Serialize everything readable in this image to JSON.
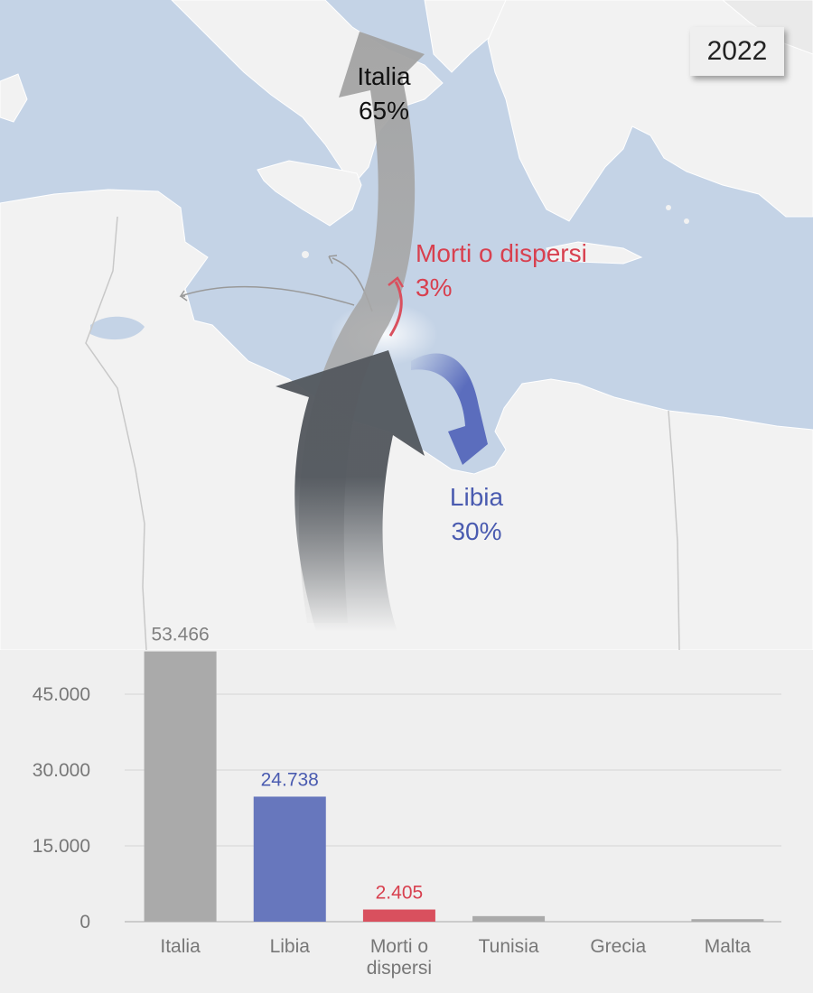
{
  "year": "2022",
  "flows": {
    "italia": {
      "name": "Italia",
      "pct": "65%"
    },
    "morti": {
      "name": "Morti o dispersi",
      "pct": "3%"
    },
    "libia": {
      "name": "Libia",
      "pct": "30%"
    }
  },
  "colors": {
    "sea": "#c4d3e6",
    "land": "#f2f2f2",
    "italia": "#aaaaaa",
    "libia": "#6777bd",
    "morti": "#d9505e",
    "other": "#aaaaaa"
  },
  "chart_data": {
    "type": "bar",
    "categories": [
      "Italia",
      "Libia",
      "Morti o dispersi",
      "Tunisia",
      "Grecia",
      "Malta"
    ],
    "category_lines": [
      [
        "Italia"
      ],
      [
        "Libia"
      ],
      [
        "Morti o",
        "dispersi"
      ],
      [
        "Tunisia"
      ],
      [
        "Grecia"
      ],
      [
        "Malta"
      ]
    ],
    "values": [
      53466,
      24738,
      2405,
      1100,
      0,
      500
    ],
    "value_labels": [
      "53.466",
      "24.738",
      "2.405",
      "",
      "",
      ""
    ],
    "bar_colors": [
      "#aaaaaa",
      "#6777bd",
      "#d9505e",
      "#aaaaaa",
      "#aaaaaa",
      "#aaaaaa"
    ],
    "label_colors": [
      "#808080",
      "#4a5bb0",
      "#d8404f",
      "#808080",
      "#808080",
      "#808080"
    ],
    "yticks": [
      0,
      15000,
      30000,
      45000
    ],
    "ytick_labels": [
      "0",
      "15.000",
      "30.000",
      "45.000"
    ],
    "ylim": [
      0,
      45000
    ],
    "grid": true
  }
}
